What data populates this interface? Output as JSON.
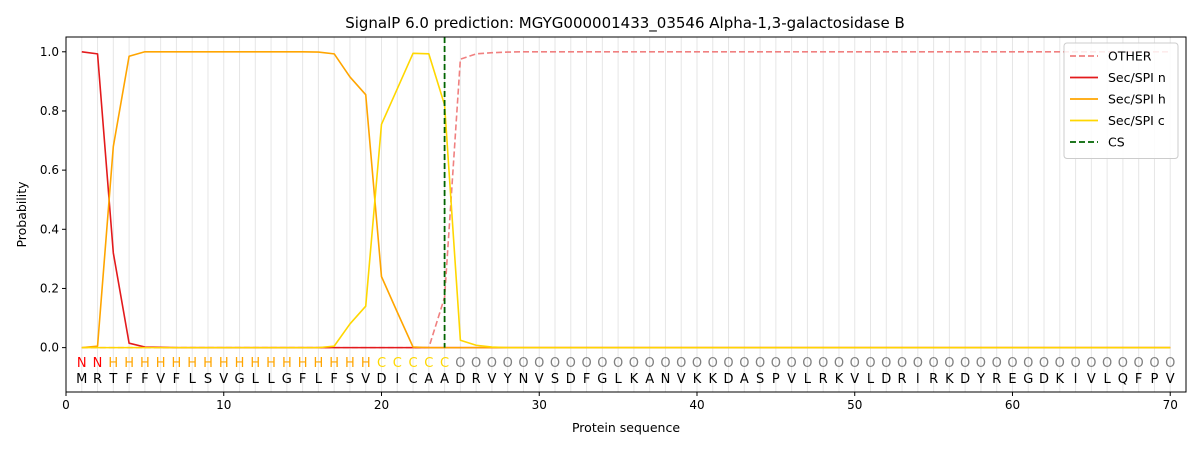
{
  "chart_data": {
    "type": "line",
    "title": "SignalP 6.0 prediction: MGYG000001433_03546 Alpha-1,3-galactosidase B",
    "xlabel": "Protein sequence",
    "ylabel": "Probability",
    "xlim": [
      0,
      71
    ],
    "ylim": [
      -0.15,
      1.05
    ],
    "xticks": [
      0,
      10,
      20,
      30,
      40,
      50,
      60,
      70
    ],
    "yticks": [
      0.0,
      0.2,
      0.4,
      0.6,
      0.8,
      1.0
    ],
    "xtick_labels": [
      "0",
      "10",
      "20",
      "30",
      "40",
      "50",
      "60",
      "70"
    ],
    "ytick_labels": [
      "0.0",
      "0.2",
      "0.4",
      "0.6",
      "0.8",
      "1.0"
    ],
    "grid": "vertical lines at each residue",
    "legend_position": "top-right",
    "sequence": [
      "M",
      "R",
      "T",
      "F",
      "F",
      "V",
      "F",
      "L",
      "S",
      "V",
      "G",
      "L",
      "L",
      "G",
      "F",
      "L",
      "F",
      "S",
      "V",
      "D",
      "I",
      "C",
      "A",
      "A",
      "D",
      "R",
      "V",
      "Y",
      "N",
      "V",
      "S",
      "D",
      "F",
      "G",
      "L",
      "K",
      "A",
      "N",
      "V",
      "K",
      "K",
      "D",
      "A",
      "S",
      "P",
      "V",
      "L",
      "R",
      "K",
      "V",
      "L",
      "D",
      "R",
      "I",
      "R",
      "K",
      "D",
      "Y",
      "R",
      "E",
      "G",
      "D",
      "K",
      "I",
      "V",
      "L",
      "Q",
      "F",
      "P",
      "V"
    ],
    "labels": [
      "N",
      "N",
      "H",
      "H",
      "H",
      "H",
      "H",
      "H",
      "H",
      "H",
      "H",
      "H",
      "H",
      "H",
      "H",
      "H",
      "H",
      "H",
      "H",
      "C",
      "C",
      "C",
      "C",
      "C",
      "O",
      "O",
      "O",
      "O",
      "O",
      "O",
      "O",
      "O",
      "O",
      "O",
      "O",
      "O",
      "O",
      "O",
      "O",
      "O",
      "O",
      "O",
      "O",
      "O",
      "O",
      "O",
      "O",
      "O",
      "O",
      "O",
      "O",
      "O",
      "O",
      "O",
      "O",
      "O",
      "O",
      "O",
      "O",
      "O",
      "O",
      "O",
      "O",
      "O",
      "O",
      "O",
      "O",
      "O",
      "O",
      "O"
    ],
    "label_colors": {
      "N": "#ff0000",
      "H": "#ffa500",
      "C": "#ffd700",
      "O": "#808080"
    },
    "series": [
      {
        "name": "OTHER",
        "color": "#f08080",
        "dash": "dashed",
        "values": [
          0.0,
          0.0,
          0.0,
          0.0,
          0.0,
          0.0,
          0.0,
          0.0,
          0.0,
          0.0,
          0.0,
          0.0,
          0.0,
          0.0,
          0.0,
          0.0,
          0.0,
          0.0,
          0.0,
          0.0,
          0.0,
          0.0,
          0.0,
          0.17,
          0.975,
          0.993,
          0.997,
          0.999,
          1.0,
          1.0,
          1.0,
          1.0,
          1.0,
          1.0,
          1.0,
          1.0,
          1.0,
          1.0,
          1.0,
          1.0,
          1.0,
          1.0,
          1.0,
          1.0,
          1.0,
          1.0,
          1.0,
          1.0,
          1.0,
          1.0,
          1.0,
          1.0,
          1.0,
          1.0,
          1.0,
          1.0,
          1.0,
          1.0,
          1.0,
          1.0,
          1.0,
          1.0,
          1.0,
          1.0,
          1.0,
          1.0,
          1.0,
          1.0,
          1.0,
          1.0
        ]
      },
      {
        "name": "Sec/SPI n",
        "color": "#e31a1c",
        "dash": "solid",
        "values": [
          1.0,
          0.993,
          0.32,
          0.015,
          0.002,
          0.001,
          0.0,
          0.0,
          0.0,
          0.0,
          0.0,
          0.0,
          0.0,
          0.0,
          0.0,
          0.0,
          0.0,
          0.0,
          0.0,
          0.0,
          0.0,
          0.0,
          0.0,
          0.0,
          0.0,
          0.0,
          0.0,
          0.0,
          0.0,
          0.0,
          0.0,
          0.0,
          0.0,
          0.0,
          0.0,
          0.0,
          0.0,
          0.0,
          0.0,
          0.0,
          0.0,
          0.0,
          0.0,
          0.0,
          0.0,
          0.0,
          0.0,
          0.0,
          0.0,
          0.0,
          0.0,
          0.0,
          0.0,
          0.0,
          0.0,
          0.0,
          0.0,
          0.0,
          0.0,
          0.0,
          0.0,
          0.0,
          0.0,
          0.0,
          0.0,
          0.0,
          0.0,
          0.0,
          0.0,
          0.0
        ]
      },
      {
        "name": "Sec/SPI h",
        "color": "#ffa500",
        "dash": "solid",
        "values": [
          0.0,
          0.005,
          0.68,
          0.985,
          1.0,
          1.0,
          1.0,
          1.0,
          1.0,
          1.0,
          1.0,
          1.0,
          1.0,
          1.0,
          1.0,
          0.999,
          0.993,
          0.915,
          0.855,
          0.24,
          0.12,
          0.002,
          0.0,
          0.0,
          0.0,
          0.0,
          0.0,
          0.0,
          0.0,
          0.0,
          0.0,
          0.0,
          0.0,
          0.0,
          0.0,
          0.0,
          0.0,
          0.0,
          0.0,
          0.0,
          0.0,
          0.0,
          0.0,
          0.0,
          0.0,
          0.0,
          0.0,
          0.0,
          0.0,
          0.0,
          0.0,
          0.0,
          0.0,
          0.0,
          0.0,
          0.0,
          0.0,
          0.0,
          0.0,
          0.0,
          0.0,
          0.0,
          0.0,
          0.0,
          0.0,
          0.0,
          0.0,
          0.0,
          0.0,
          0.0
        ]
      },
      {
        "name": "Sec/SPI c",
        "color": "#ffd700",
        "dash": "solid",
        "values": [
          0.0,
          0.0,
          0.0,
          0.0,
          0.0,
          0.0,
          0.0,
          0.0,
          0.0,
          0.0,
          0.0,
          0.0,
          0.0,
          0.0,
          0.0,
          0.0,
          0.005,
          0.08,
          0.14,
          0.755,
          0.875,
          0.995,
          0.993,
          0.82,
          0.025,
          0.008,
          0.002,
          0.0,
          0.0,
          0.0,
          0.0,
          0.0,
          0.0,
          0.0,
          0.0,
          0.0,
          0.0,
          0.0,
          0.0,
          0.0,
          0.0,
          0.0,
          0.0,
          0.0,
          0.0,
          0.0,
          0.0,
          0.0,
          0.0,
          0.0,
          0.0,
          0.0,
          0.0,
          0.0,
          0.0,
          0.0,
          0.0,
          0.0,
          0.0,
          0.0,
          0.0,
          0.0,
          0.0,
          0.0,
          0.0,
          0.0,
          0.0,
          0.0,
          0.0,
          0.0
        ]
      }
    ],
    "cs": {
      "name": "CS",
      "x": 24,
      "color": "#006400",
      "dash": "dashed"
    }
  }
}
